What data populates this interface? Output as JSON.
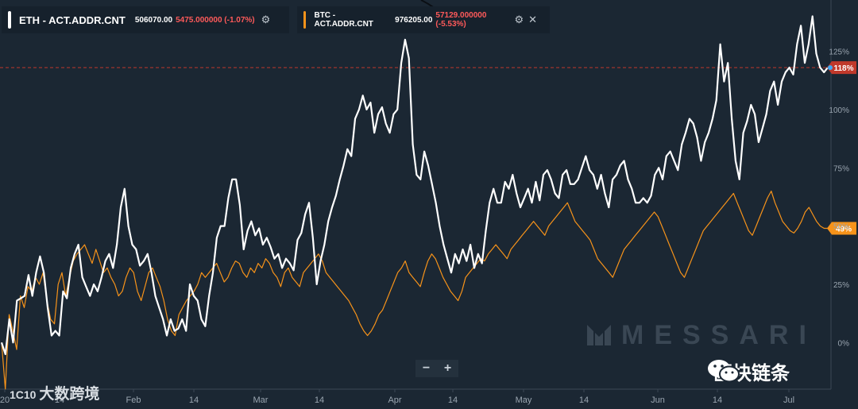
{
  "legend": {
    "eth": {
      "name": "ETH - ACT.ADDR.CNT",
      "value": "506070.00",
      "change": "5475.000000 (-1.07%)",
      "color": "#ffffff"
    },
    "btc": {
      "name": "BTC - ACT.ADDR.CNT",
      "value": "976205.00",
      "change": "57129.000000 (-5.53%)",
      "color": "#f7931a"
    }
  },
  "watermarks": {
    "messari": "MESSARI",
    "wechat": "区块链条",
    "source": "大数跨境"
  },
  "zoom": {
    "minus": "−",
    "plus": "+"
  },
  "chart_data": {
    "type": "line",
    "title": "",
    "xlabel": "",
    "ylabel": "",
    "x_tick_labels": [
      "20",
      "14",
      "Feb",
      "14",
      "Mar",
      "14",
      "Apr",
      "14",
      "May",
      "14",
      "Jun",
      "14",
      "Jul"
    ],
    "y_tick_labels": [
      "0%",
      "25%",
      "50%",
      "75%",
      "100%",
      "125%"
    ],
    "ylim": [
      -20,
      147
    ],
    "grid": false,
    "legend_position": "top-left",
    "reference_line": {
      "value": 118,
      "label": "118%",
      "color": "#c0392b",
      "style": "dashed"
    },
    "series": [
      {
        "name": "ETH - ACT.ADDR.CNT",
        "color": "#ffffff",
        "end_label": "118%",
        "values": [
          0,
          -5,
          10,
          0,
          18,
          19,
          20,
          29,
          20,
          30,
          37,
          30,
          15,
          3,
          5,
          3,
          22,
          19,
          32,
          38,
          42,
          28,
          24,
          20,
          25,
          22,
          28,
          35,
          38,
          32,
          42,
          58,
          66,
          50,
          42,
          40,
          33,
          35,
          38,
          30,
          20,
          15,
          10,
          3,
          10,
          5,
          6,
          10,
          5,
          25,
          20,
          18,
          10,
          7,
          20,
          30,
          45,
          50,
          50,
          62,
          70,
          70,
          59,
          40,
          48,
          52,
          46,
          49,
          42,
          45,
          41,
          36,
          38,
          32,
          36,
          34,
          31,
          44,
          47,
          55,
          60,
          45,
          25,
          35,
          42,
          52,
          58,
          63,
          70,
          76,
          83,
          80,
          96,
          100,
          106,
          100,
          103,
          90,
          98,
          101,
          94,
          90,
          98,
          100,
          120,
          130,
          122,
          85,
          72,
          70,
          82,
          76,
          68,
          60,
          50,
          42,
          36,
          30,
          38,
          34,
          40,
          35,
          42,
          32,
          38,
          34,
          48,
          60,
          66,
          60,
          60,
          69,
          66,
          72,
          64,
          58,
          62,
          66,
          60,
          69,
          61,
          72,
          74,
          70,
          64,
          62,
          72,
          74,
          68,
          68,
          70,
          75,
          80,
          74,
          72,
          66,
          72,
          64,
          58,
          70,
          72,
          76,
          78,
          70,
          66,
          60,
          60,
          62,
          60,
          63,
          72,
          75,
          70,
          80,
          82,
          78,
          74,
          85,
          90,
          96,
          94,
          88,
          78,
          86,
          90,
          96,
          104,
          128,
          112,
          120,
          96,
          78,
          70,
          90,
          95,
          102,
          98,
          86,
          92,
          98,
          108,
          112,
          102,
          112,
          116,
          118,
          115,
          128,
          136,
          120,
          128,
          140,
          124,
          118,
          116,
          118
        ]
      },
      {
        "name": "BTC - ACT.ADDR.CNT",
        "color": "#f7931a",
        "end_label": "49%",
        "values": [
          0,
          -20,
          12,
          5,
          -3,
          20,
          15,
          24,
          22,
          28,
          25,
          30,
          18,
          10,
          8,
          25,
          30,
          20,
          28,
          35,
          38,
          40,
          42,
          38,
          34,
          40,
          35,
          30,
          32,
          28,
          25,
          20,
          22,
          28,
          32,
          30,
          22,
          18,
          24,
          30,
          32,
          28,
          24,
          18,
          10,
          5,
          3,
          12,
          15,
          18,
          20,
          22,
          25,
          30,
          28,
          30,
          32,
          34,
          30,
          26,
          28,
          32,
          35,
          34,
          30,
          28,
          32,
          30,
          34,
          32,
          36,
          34,
          30,
          28,
          24,
          30,
          32,
          28,
          26,
          24,
          30,
          32,
          34,
          36,
          38,
          35,
          30,
          28,
          26,
          24,
          22,
          20,
          18,
          15,
          12,
          8,
          5,
          3,
          5,
          8,
          12,
          14,
          18,
          22,
          26,
          30,
          32,
          35,
          30,
          28,
          26,
          24,
          30,
          35,
          38,
          36,
          32,
          28,
          25,
          22,
          20,
          18,
          22,
          28,
          30,
          32,
          34,
          36,
          35,
          38,
          40,
          42,
          40,
          38,
          36,
          40,
          42,
          44,
          46,
          48,
          50,
          52,
          50,
          48,
          46,
          50,
          52,
          54,
          56,
          58,
          60,
          56,
          52,
          50,
          48,
          46,
          44,
          40,
          36,
          34,
          32,
          30,
          28,
          32,
          36,
          40,
          42,
          44,
          46,
          48,
          50,
          52,
          54,
          56,
          54,
          50,
          46,
          42,
          38,
          34,
          30,
          28,
          32,
          36,
          40,
          44,
          48,
          50,
          52,
          54,
          56,
          58,
          60,
          62,
          64,
          60,
          56,
          52,
          48,
          46,
          50,
          54,
          58,
          62,
          65,
          60,
          56,
          52,
          50,
          48,
          47,
          49,
          52,
          56,
          58,
          55,
          52,
          50,
          49,
          49
        ]
      }
    ]
  }
}
